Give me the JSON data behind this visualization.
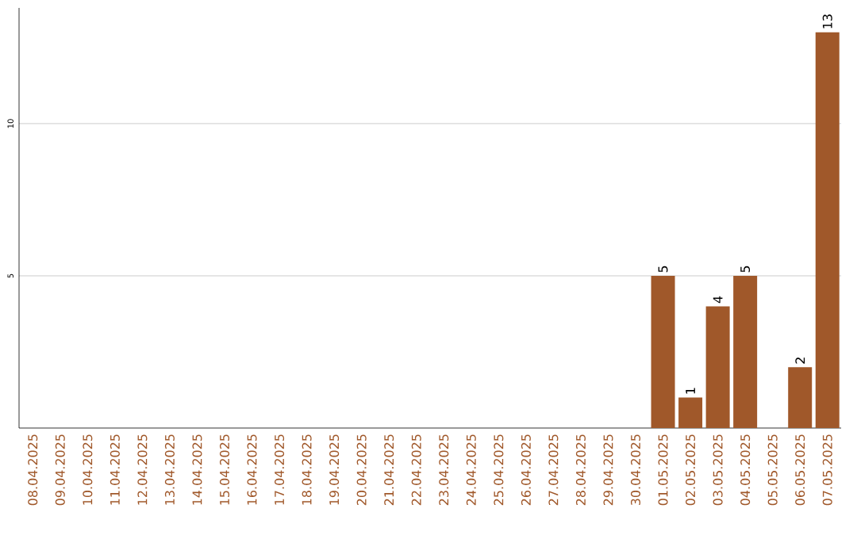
{
  "chart_data": {
    "type": "bar",
    "categories": [
      "08.04.2025",
      "09.04.2025",
      "10.04.2025",
      "11.04.2025",
      "12.04.2025",
      "13.04.2025",
      "14.04.2025",
      "15.04.2025",
      "16.04.2025",
      "17.04.2025",
      "18.04.2025",
      "19.04.2025",
      "20.04.2025",
      "21.04.2025",
      "22.04.2025",
      "23.04.2025",
      "24.04.2025",
      "25.04.2025",
      "26.04.2025",
      "27.04.2025",
      "28.04.2025",
      "29.04.2025",
      "30.04.2025",
      "01.05.2025",
      "02.05.2025",
      "03.05.2025",
      "04.05.2025",
      "05.05.2025",
      "06.05.2025",
      "07.05.2025"
    ],
    "values": [
      null,
      null,
      null,
      null,
      null,
      null,
      null,
      null,
      null,
      null,
      null,
      null,
      null,
      null,
      null,
      null,
      null,
      null,
      null,
      null,
      null,
      null,
      null,
      5,
      1,
      4,
      5,
      null,
      2,
      13
    ],
    "value_labels": [
      null,
      null,
      null,
      null,
      null,
      null,
      null,
      null,
      null,
      null,
      null,
      null,
      null,
      null,
      null,
      null,
      null,
      null,
      null,
      null,
      null,
      null,
      null,
      "5",
      "1",
      "4",
      "5",
      null,
      "2",
      "13"
    ],
    "color": "#a0582a",
    "ylim": [
      0,
      13.8
    ],
    "yticks": [
      5,
      10
    ],
    "grid": "y"
  }
}
